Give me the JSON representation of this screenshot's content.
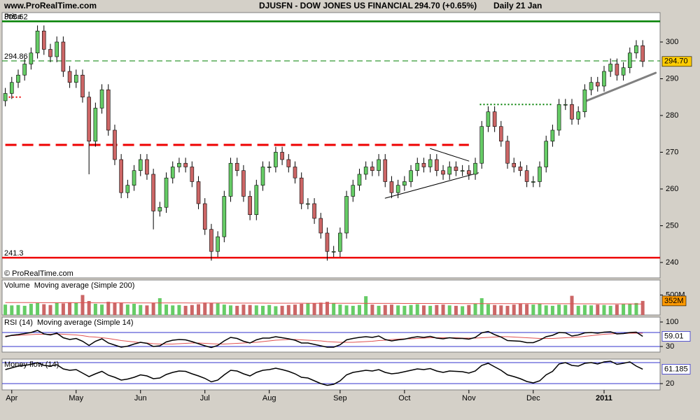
{
  "header": {
    "site": "www.ProRealTime.com",
    "title": "DJUSFN - DOW JONES US FINANCIAL",
    "change": "294.70 (+0.65%)",
    "period": "Daily  21 Jan"
  },
  "chart_data": [
    {
      "type": "candlestick",
      "title": "Price",
      "credit": "© ProRealTime.com",
      "categories": [
        null,
        null,
        null,
        null,
        null,
        null,
        null,
        null,
        null,
        null,
        null,
        null,
        null,
        null,
        null,
        null,
        null,
        null,
        null,
        null,
        null,
        null,
        null,
        null,
        null,
        null,
        null,
        null,
        null,
        null,
        null,
        null,
        null,
        null,
        null,
        null,
        null,
        null,
        null,
        null,
        null,
        null,
        null,
        null,
        null,
        null,
        null,
        null,
        null,
        null,
        null,
        null,
        null,
        null,
        null,
        null,
        null,
        null,
        null,
        null,
        null,
        null,
        null,
        null,
        null,
        null,
        null,
        null,
        null,
        null,
        null,
        null,
        null,
        null,
        null,
        null,
        null,
        null,
        null,
        null,
        null,
        null,
        null,
        null,
        null,
        null,
        null,
        null,
        null,
        null,
        null,
        null,
        null,
        null,
        null,
        null,
        null,
        null,
        null,
        null
      ],
      "xlim": [
        -0.5,
        101.7
      ],
      "xticks": [
        {
          "value": 1,
          "label": "Apr"
        },
        {
          "value": 11,
          "label": "May"
        },
        {
          "value": 21,
          "label": "Jun"
        },
        {
          "value": 31,
          "label": "Jul"
        },
        {
          "value": 41,
          "label": "Aug"
        },
        {
          "value": 52,
          "label": "Sep"
        },
        {
          "value": 62,
          "label": "Oct"
        },
        {
          "value": 72,
          "label": "Nov"
        },
        {
          "value": 82,
          "label": "Dec"
        },
        {
          "value": 93,
          "label": "2011"
        }
      ],
      "open": [
        284,
        286,
        289,
        291,
        294,
        297,
        303,
        298,
        296,
        300,
        292,
        289,
        291,
        285,
        273,
        282,
        287,
        276,
        268,
        259,
        261,
        265,
        268,
        264,
        254,
        255,
        263,
        266,
        267,
        266,
        262,
        256,
        249,
        243,
        247,
        258,
        267,
        265,
        258,
        253,
        261,
        266,
        266,
        270,
        268,
        266,
        263,
        256,
        256,
        252,
        248,
        243,
        243,
        248,
        258,
        261,
        264,
        266,
        265,
        268,
        262,
        259,
        261,
        262,
        265,
        267,
        266,
        268,
        265,
        264,
        266,
        265,
        265,
        264,
        267,
        277,
        281,
        277,
        273,
        267,
        266,
        265,
        262,
        262,
        266,
        273,
        276,
        283,
        283,
        279,
        281,
        287,
        289,
        288,
        292,
        294,
        291,
        293,
        297,
        299
      ],
      "high": [
        287.5,
        290.5,
        292.5,
        295.5,
        298.5,
        304.5,
        304.5,
        299.5,
        301.5,
        301.5,
        293.5,
        292.5,
        292.5,
        286.5,
        283.5,
        288.5,
        288.5,
        277.5,
        269.5,
        262.5,
        266.5,
        269.5,
        269.5,
        265.5,
        256.5,
        264.5,
        267.5,
        268.5,
        268.5,
        267.5,
        263.5,
        257.5,
        250.5,
        248.5,
        259.5,
        268.5,
        268.5,
        266.5,
        259.5,
        262.5,
        267.5,
        267.5,
        271.5,
        271.5,
        269.5,
        267.5,
        264.5,
        257.5,
        257.5,
        253.5,
        249.5,
        244.5,
        249.5,
        259.5,
        262.5,
        265.5,
        267.5,
        267.5,
        269.5,
        269.5,
        263.5,
        262.5,
        263.5,
        266.5,
        268.5,
        268.5,
        269.5,
        269.5,
        266.5,
        267.5,
        267.5,
        266.5,
        266.5,
        268.5,
        278.5,
        282.5,
        282.5,
        278.5,
        274.5,
        268.5,
        267.5,
        266.5,
        263.5,
        267.5,
        274.5,
        277.5,
        284.5,
        284.5,
        284.5,
        282.5,
        288.5,
        290.5,
        290.5,
        293.5,
        295.5,
        295.5,
        294.5,
        298.5,
        300.5,
        300.5
      ],
      "low": [
        282.5,
        284.5,
        287.5,
        289.5,
        292.5,
        295.5,
        296.5,
        294.5,
        294.5,
        290.5,
        287.5,
        287.5,
        283.5,
        264,
        271.5,
        280.5,
        274.5,
        266.5,
        257.5,
        257.5,
        259.5,
        263.5,
        262.5,
        249,
        252.5,
        253.5,
        261.5,
        264.5,
        264.5,
        260.5,
        254.5,
        247.5,
        240.5,
        241.5,
        245.5,
        256.5,
        263.5,
        256.5,
        251.5,
        251.5,
        259.5,
        264.5,
        264.5,
        266.5,
        264.5,
        261.5,
        254.5,
        254.5,
        250.5,
        246.5,
        240.5,
        241.5,
        241.5,
        246.5,
        256.5,
        259.5,
        262.5,
        263.5,
        263.5,
        260.5,
        257.5,
        257.5,
        259.5,
        260.5,
        263.5,
        264.5,
        264.5,
        263.5,
        262.5,
        262.5,
        263.5,
        263.5,
        262.5,
        262.5,
        265.5,
        275.5,
        275.5,
        271.5,
        265.5,
        264.5,
        263.5,
        260.5,
        260.5,
        260.5,
        264.5,
        271.5,
        274.5,
        281.5,
        277.5,
        277.5,
        279.5,
        285.5,
        286.5,
        286.5,
        290.5,
        289.5,
        289.5,
        291.5,
        295.5,
        293.2
      ],
      "close": [
        286,
        289,
        291,
        294,
        297,
        303,
        298,
        296,
        300,
        292,
        289,
        291,
        285,
        273,
        282,
        287,
        276,
        268,
        259,
        261,
        265,
        268,
        264,
        254,
        255,
        263,
        266,
        267,
        266,
        262,
        256,
        249,
        243,
        247,
        258,
        267,
        265,
        258,
        253,
        261,
        266,
        266,
        270,
        268,
        266,
        263,
        256,
        256,
        252,
        248,
        243,
        243,
        248,
        258,
        261,
        264,
        266,
        265,
        268,
        262,
        259,
        261,
        262,
        265,
        267,
        266,
        268,
        265,
        264,
        266,
        265,
        265,
        264,
        267,
        277,
        281,
        277,
        273,
        267,
        266,
        265,
        262,
        262,
        266,
        273,
        276,
        283,
        283,
        279,
        281,
        287,
        289,
        288,
        292,
        294,
        291,
        293,
        297,
        299,
        294.7
      ],
      "up_color": "#66cc66",
      "down_color": "#cc6666",
      "ylim": [
        235.8,
        308
      ],
      "yticks": [
        240,
        250,
        260,
        270,
        280,
        290,
        300
      ],
      "last_value": {
        "value": 294.7,
        "label": "294.70"
      },
      "levels": [
        {
          "value": 305.62,
          "color": "#008000",
          "style": "solid",
          "show_label": true
        },
        {
          "value": 294.86,
          "color": "#008000",
          "style": "dashed-thin",
          "show_label": true
        },
        {
          "value": 241.3,
          "color": "#ee0000",
          "style": "solid",
          "show_label": true
        },
        {
          "value": 272,
          "color": "#ee0000",
          "style": "dashed",
          "from": 0,
          "to": 72
        },
        {
          "value": 285,
          "color": "#ee0000",
          "style": "dotted",
          "from": 0,
          "to": 2.5
        },
        {
          "value": 283,
          "color": "#008000",
          "style": "dotted",
          "from": 73.7,
          "to": 85.1
        }
      ],
      "trendlines": [
        {
          "from": [
            66,
            271
          ],
          "to": [
            72,
            267.6
          ],
          "color": "#000000",
          "style": "thin"
        },
        {
          "from": [
            59,
            257.5
          ],
          "to": [
            73.5,
            264.4
          ],
          "color": "#000000",
          "style": "thin"
        },
        {
          "from": [
            90,
            283.8
          ],
          "to": [
            101,
            291.6
          ],
          "color": "#808080",
          "style": "thick"
        }
      ]
    },
    {
      "type": "volume",
      "series": [
        {
          "name": "Volume",
          "color": "#33aa33",
          "values": [
            260,
            240,
            250,
            230,
            280,
            300,
            270,
            250,
            310,
            290,
            320,
            300,
            500,
            350,
            280,
            260,
            330,
            310,
            300,
            260,
            280,
            250,
            240,
            300,
            420,
            260,
            240,
            250,
            230,
            250,
            270,
            310,
            300,
            290,
            260,
            240,
            230,
            260,
            250,
            240,
            230,
            250,
            220,
            230,
            250,
            260,
            280,
            300,
            290,
            310,
            330,
            300,
            260,
            240,
            230,
            250,
            470,
            260,
            230,
            250,
            260,
            240,
            230,
            250,
            270,
            240,
            230,
            250,
            260,
            240,
            230,
            220,
            250,
            280,
            420,
            270,
            250,
            240,
            230,
            260,
            280,
            270,
            260,
            280,
            240,
            230,
            260,
            250,
            480,
            230,
            250,
            240,
            260,
            250,
            230,
            260,
            270,
            280,
            300,
            352
          ]
        },
        {
          "name": "Moving average (Simple 200)",
          "color": "#e05050",
          "values": [
            310,
            310,
            309,
            309,
            309,
            308,
            308,
            308,
            307,
            307,
            307,
            306,
            306,
            306,
            305,
            305,
            305,
            304,
            304,
            304,
            303,
            303,
            303,
            302,
            302,
            302,
            301,
            301,
            301,
            300,
            300,
            300,
            299,
            299,
            299,
            298,
            298,
            298,
            297,
            297,
            297,
            296,
            296,
            296,
            295,
            295,
            295,
            294,
            294,
            294,
            293,
            293,
            293,
            292,
            292,
            292,
            291,
            291,
            291,
            290,
            290,
            290,
            289,
            289,
            289,
            288,
            288,
            288,
            287,
            287,
            287,
            286,
            286,
            286,
            285,
            285,
            285,
            284,
            284,
            284,
            283,
            283,
            283,
            282,
            282,
            282,
            281,
            281,
            281,
            280,
            280,
            280,
            279,
            279,
            279,
            278,
            278,
            278,
            277,
            277
          ]
        }
      ],
      "ylim": [
        0,
        875
      ],
      "yticks": [
        {
          "value": 500,
          "label": "500M"
        }
      ],
      "last_value": {
        "value": 352,
        "label": "352M"
      }
    },
    {
      "type": "oscillator",
      "series": [
        {
          "name": "RSI (14)",
          "color": "#000000",
          "values": [
            58,
            62,
            64,
            67,
            70,
            76,
            66,
            63,
            68,
            55,
            50,
            53,
            45,
            33,
            45,
            52,
            40,
            34,
            28,
            31,
            37,
            42,
            39,
            30,
            32,
            43,
            48,
            50,
            49,
            44,
            38,
            32,
            27,
            33,
            46,
            56,
            53,
            45,
            40,
            49,
            54,
            54,
            58,
            55,
            52,
            48,
            40,
            40,
            36,
            32,
            28,
            28,
            35,
            49,
            53,
            56,
            58,
            56,
            60,
            50,
            46,
            49,
            51,
            55,
            58,
            56,
            59,
            54,
            52,
            55,
            53,
            53,
            51,
            56,
            69,
            73,
            64,
            57,
            47,
            46,
            45,
            41,
            41,
            48,
            58,
            62,
            70,
            69,
            60,
            63,
            69,
            70,
            68,
            71,
            72,
            66,
            67,
            70,
            71,
            59.01
          ]
        },
        {
          "name": "Moving average (Simple 14)",
          "color": "#e05050",
          "values": [
            60,
            61,
            62,
            63,
            64,
            65,
            65,
            65,
            66,
            65,
            64,
            63,
            61,
            58,
            57,
            55,
            53,
            50,
            47,
            45,
            43,
            41,
            40,
            38,
            37,
            37,
            37,
            38,
            39,
            40,
            40,
            39,
            38,
            37,
            37,
            38,
            39,
            40,
            41,
            42,
            44,
            46,
            48,
            49,
            50,
            50,
            49,
            48,
            47,
            46,
            44,
            43,
            42,
            42,
            42,
            43,
            44,
            45,
            47,
            48,
            50,
            51,
            52,
            52,
            53,
            54,
            55,
            55,
            55,
            55,
            55,
            54,
            54,
            54,
            55,
            56,
            57,
            58,
            58,
            57,
            56,
            55,
            54,
            53,
            53,
            53,
            54,
            55,
            56,
            57,
            59,
            61,
            63,
            65,
            66,
            67,
            67,
            68,
            68,
            68
          ]
        }
      ],
      "ylim": [
        14,
        114
      ],
      "yticks": [
        30,
        100
      ],
      "levels": [
        30,
        70
      ]
    },
    {
      "type": "oscillator",
      "series": [
        {
          "name": "Money flow (14)",
          "color": "#000000",
          "values": [
            60,
            65,
            70,
            72,
            75,
            80,
            72,
            70,
            74,
            62,
            58,
            60,
            50,
            40,
            48,
            55,
            44,
            38,
            30,
            33,
            38,
            45,
            42,
            34,
            36,
            46,
            52,
            56,
            55,
            48,
            42,
            35,
            25,
            30,
            45,
            58,
            56,
            48,
            42,
            52,
            58,
            60,
            64,
            60,
            55,
            48,
            38,
            36,
            28,
            20,
            15,
            18,
            28,
            45,
            52,
            55,
            58,
            56,
            60,
            52,
            48,
            50,
            54,
            58,
            62,
            60,
            63,
            56,
            52,
            56,
            55,
            54,
            50,
            56,
            72,
            78,
            68,
            58,
            45,
            40,
            34,
            26,
            22,
            28,
            45,
            55,
            76,
            80,
            72,
            70,
            78,
            80,
            76,
            82,
            84,
            75,
            78,
            82,
            70,
            61.185
          ]
        }
      ],
      "ylim": [
        2,
        90
      ],
      "yticks": [
        20
      ],
      "levels": [
        20,
        80
      ]
    }
  ]
}
